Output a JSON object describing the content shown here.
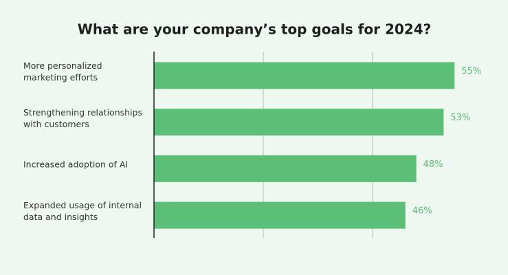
{
  "chart_data": {
    "type": "bar",
    "orientation": "horizontal",
    "title": "What are your company’s top goals for 2024?",
    "categories": [
      "More personalized marketing efforts",
      "Strengthening relationships with customers",
      "Increased adoption of AI",
      "Expanded usage of internal data and insights"
    ],
    "values": [
      55,
      53,
      48,
      46
    ],
    "value_labels": [
      "55%",
      "53%",
      "48%",
      "46%"
    ],
    "color": "#5bbf77",
    "xlim": [
      0,
      60
    ],
    "xticks": [
      20,
      40
    ],
    "grid": true
  }
}
